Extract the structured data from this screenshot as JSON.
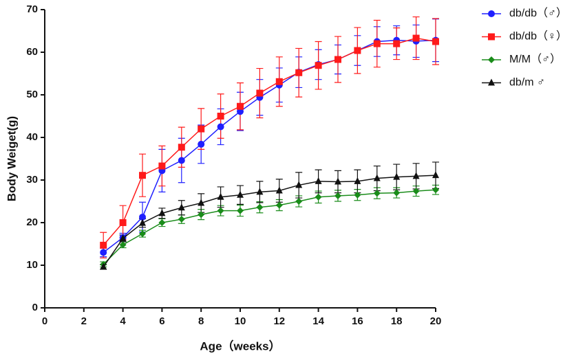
{
  "chart_data": {
    "type": "line",
    "xlabel": "Age（weeks）",
    "ylabel": "Body Weiget(g)",
    "x": [
      3,
      4,
      5,
      6,
      7,
      8,
      9,
      10,
      11,
      12,
      13,
      14,
      15,
      16,
      17,
      18,
      19,
      20
    ],
    "xlim": [
      0,
      20
    ],
    "xticks": [
      0,
      2,
      4,
      6,
      8,
      10,
      12,
      14,
      16,
      18,
      20
    ],
    "ylim": [
      0,
      70
    ],
    "yticks": [
      0,
      10,
      20,
      30,
      40,
      50,
      60,
      70
    ],
    "grid": false,
    "legend": "right",
    "series": [
      {
        "name": "db/db（♂）",
        "color": "#1f1fff",
        "marker": "circle",
        "values": [
          13,
          16.5,
          21.3,
          32.2,
          34.6,
          38.4,
          42.5,
          46.1,
          49.4,
          52.3,
          55.3,
          57.1,
          58.3,
          60.4,
          62.5,
          62.8,
          62.6,
          62.8
        ],
        "errors": [
          1,
          1,
          3.5,
          5,
          5.2,
          4.5,
          4.2,
          4.5,
          4.2,
          4,
          3.6,
          3.5,
          3.4,
          3.5,
          3.5,
          3.4,
          3.8,
          5
        ]
      },
      {
        "name": "db/db（♀）",
        "color": "#ff1a1a",
        "marker": "square",
        "values": [
          14.7,
          20,
          31.1,
          33.3,
          37.7,
          42,
          45,
          47.3,
          50.4,
          53.1,
          55.2,
          56.9,
          58.3,
          60.4,
          62,
          62,
          63.3,
          62.5
        ],
        "errors": [
          3,
          4,
          5,
          4.7,
          4.7,
          4.8,
          5.2,
          5.5,
          5.8,
          5.8,
          5.7,
          5.6,
          5.4,
          5.4,
          5.5,
          3.7,
          5,
          5.4
        ]
      },
      {
        "name": "M/M（♂）",
        "color": "#1a8c1a",
        "marker": "diamond",
        "values": [
          10.2,
          14.8,
          17.4,
          20,
          20.8,
          21.9,
          22.8,
          22.8,
          23.6,
          24.1,
          25,
          26,
          26.3,
          26.5,
          26.9,
          27,
          27.4,
          27.7
        ],
        "errors": [
          0.6,
          0.7,
          0.8,
          0.9,
          1,
          1.2,
          1.2,
          1.3,
          1.3,
          1.3,
          1.3,
          1.4,
          1.3,
          1.3,
          1.3,
          1.2,
          1.2,
          1.1
        ]
      },
      {
        "name": "db/m ♂",
        "color": "#111111",
        "marker": "triangle",
        "values": [
          9.6,
          16.3,
          19.9,
          22.2,
          23.5,
          24.6,
          26,
          26.5,
          27.2,
          27.5,
          28.8,
          29.7,
          29.6,
          29.7,
          30.4,
          30.7,
          30.9,
          31.1
        ],
        "errors": [
          0.5,
          0.8,
          1,
          1.2,
          1.7,
          2.2,
          2.4,
          2.2,
          2.5,
          2.7,
          3,
          2.7,
          2.6,
          2.7,
          2.9,
          3,
          3,
          3.1
        ]
      }
    ]
  }
}
